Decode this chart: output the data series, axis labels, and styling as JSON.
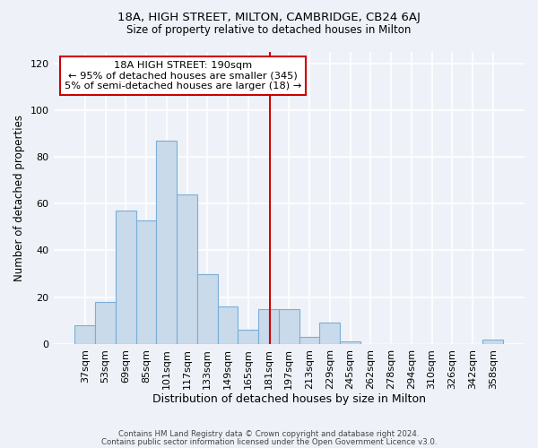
{
  "title1": "18A, HIGH STREET, MILTON, CAMBRIDGE, CB24 6AJ",
  "title2": "Size of property relative to detached houses in Milton",
  "xlabel": "Distribution of detached houses by size in Milton",
  "ylabel": "Number of detached properties",
  "bin_labels": [
    "37sqm",
    "53sqm",
    "69sqm",
    "85sqm",
    "101sqm",
    "117sqm",
    "133sqm",
    "149sqm",
    "165sqm",
    "181sqm",
    "197sqm",
    "213sqm",
    "229sqm",
    "245sqm",
    "262sqm",
    "278sqm",
    "294sqm",
    "310sqm",
    "326sqm",
    "342sqm",
    "358sqm"
  ],
  "bar_heights": [
    8,
    18,
    57,
    53,
    87,
    64,
    30,
    16,
    6,
    15,
    15,
    3,
    9,
    1,
    0,
    0,
    0,
    0,
    0,
    0,
    2
  ],
  "bar_color": "#c9daea",
  "bar_edge_color": "#7aaed6",
  "vline_color": "#cc0000",
  "ylim": [
    0,
    125
  ],
  "yticks": [
    0,
    20,
    40,
    60,
    80,
    100,
    120
  ],
  "annotation_title": "18A HIGH STREET: 190sqm",
  "annotation_line1": "← 95% of detached houses are smaller (345)",
  "annotation_line2": "5% of semi-detached houses are larger (18) →",
  "annotation_box_color": "#ffffff",
  "annotation_box_edge": "#cc0000",
  "footer1": "Contains HM Land Registry data © Crown copyright and database right 2024.",
  "footer2": "Contains public sector information licensed under the Open Government Licence v3.0.",
  "bg_color": "#eef2f8",
  "grid_color": "#ffffff"
}
